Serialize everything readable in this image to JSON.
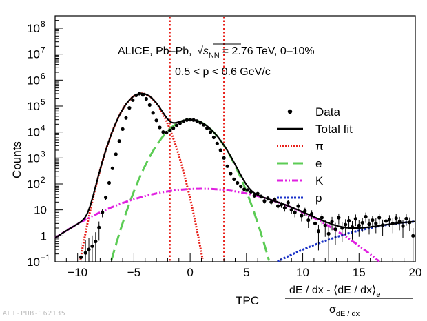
{
  "chart_data": {
    "type": "scatter",
    "collaboration_label": "ALICE, Pb–Pb,",
    "sqrt_symbol": "√",
    "energy_symbol": "s",
    "energy_subscript": "NN",
    "energy_value": "= 2.76 TeV, 0–10%",
    "momentum_range": "0.5 < p < 0.6 GeV/c",
    "ylabel": "Counts",
    "xlabel": {
      "prefix": "TPC",
      "numerator": "dE / dx - ⟨dE / dx⟩",
      "numerator_subscript": "e",
      "denominator": "σ",
      "denominator_subscript": "dE / dx"
    },
    "xlim": [
      -12,
      20
    ],
    "ylim": [
      0.1,
      300000000
    ],
    "yscale": "log",
    "x_ticks": [
      {
        "value": -10,
        "label": "−10"
      },
      {
        "value": -5,
        "label": "−5"
      },
      {
        "value": 0,
        "label": "0"
      },
      {
        "value": 5,
        "label": "5"
      },
      {
        "value": 10,
        "label": "10"
      },
      {
        "value": 15,
        "label": "15"
      },
      {
        "value": 20,
        "label": "20"
      }
    ],
    "y_ticks": [
      {
        "value": 0.1,
        "base": "10",
        "exp": "−1"
      },
      {
        "value": 1,
        "base": "1",
        "exp": ""
      },
      {
        "value": 10,
        "base": "10",
        "exp": ""
      },
      {
        "value": 100,
        "base": "10",
        "exp": "2"
      },
      {
        "value": 1000,
        "base": "10",
        "exp": "3"
      },
      {
        "value": 10000,
        "base": "10",
        "exp": "4"
      },
      {
        "value": 100000,
        "base": "10",
        "exp": "5"
      },
      {
        "value": 1000000,
        "base": "10",
        "exp": "6"
      },
      {
        "value": 10000000,
        "base": "10",
        "exp": "7"
      },
      {
        "value": 100000000,
        "base": "10",
        "exp": "8"
      }
    ],
    "selection_lines": [
      -1.8,
      3.0
    ],
    "series": [
      {
        "name": "Data",
        "legend_label": "Data",
        "kind": "points",
        "color": "#000000"
      },
      {
        "name": "Total fit",
        "legend_label": "Total fit",
        "kind": "line",
        "color": "#000000",
        "components": [
          "pi",
          "e",
          "K",
          "p"
        ]
      },
      {
        "name": "pi",
        "legend_label": "π",
        "kind": "gauss",
        "color": "#e8201a",
        "dash": "2,2",
        "amp": 300000,
        "mean": -4.5,
        "sigma": 1.0,
        "lambda": 0.18
      },
      {
        "name": "e",
        "legend_label": "e",
        "kind": "gauss",
        "color": "#5ccc55",
        "dash": "16,7",
        "amp": 30000,
        "mean": 0.0,
        "sigma": 1.4,
        "lambda": 0
      },
      {
        "name": "K",
        "legend_label": "K",
        "kind": "gauss",
        "color": "#e020e0",
        "dash": "9,3,2,3,2,3",
        "amp": 65,
        "mean": 1.0,
        "sigma": 4.4,
        "lambda": 0
      },
      {
        "name": "p",
        "legend_label": "p",
        "kind": "gauss",
        "color": "#1a32c8",
        "dash": "3,2",
        "amp": 3.8,
        "mean": 22.0,
        "sigma": 5.3,
        "lambda": 0
      }
    ],
    "data_points": [
      {
        "x": -9.7,
        "y": 0.15
      },
      {
        "x": -9.3,
        "y": 0.22
      },
      {
        "x": -9.0,
        "y": 0.3
      },
      {
        "x": -8.7,
        "y": 0.4
      },
      {
        "x": -8.4,
        "y": 0.6
      },
      {
        "x": -8.1,
        "y": 2.1
      },
      {
        "x": -7.8,
        "y": 8
      },
      {
        "x": -7.5,
        "y": 30
      },
      {
        "x": -7.2,
        "y": 110
      },
      {
        "x": -6.9,
        "y": 400
      },
      {
        "x": -6.6,
        "y": 1400
      },
      {
        "x": -6.3,
        "y": 4500
      },
      {
        "x": -6.0,
        "y": 13000
      },
      {
        "x": -5.7,
        "y": 35000
      },
      {
        "x": -5.4,
        "y": 85000
      },
      {
        "x": -5.1,
        "y": 170000
      },
      {
        "x": -4.8,
        "y": 260000
      },
      {
        "x": -4.5,
        "y": 300000
      },
      {
        "x": -4.2,
        "y": 270000
      },
      {
        "x": -3.9,
        "y": 190000
      },
      {
        "x": -3.6,
        "y": 110000
      },
      {
        "x": -3.3,
        "y": 55000
      },
      {
        "x": -3.0,
        "y": 28000
      },
      {
        "x": -2.7,
        "y": 15000
      },
      {
        "x": -2.4,
        "y": 10000
      },
      {
        "x": -2.1,
        "y": 9500
      },
      {
        "x": -1.8,
        "y": 11500
      },
      {
        "x": -1.5,
        "y": 14000
      },
      {
        "x": -1.2,
        "y": 18000
      },
      {
        "x": -0.9,
        "y": 22000
      },
      {
        "x": -0.6,
        "y": 26000
      },
      {
        "x": -0.3,
        "y": 29000
      },
      {
        "x": 0.0,
        "y": 30000
      },
      {
        "x": 0.3,
        "y": 29000
      },
      {
        "x": 0.6,
        "y": 26500
      },
      {
        "x": 0.9,
        "y": 23000
      },
      {
        "x": 1.2,
        "y": 19000
      },
      {
        "x": 1.5,
        "y": 14000
      },
      {
        "x": 1.8,
        "y": 9800
      },
      {
        "x": 2.1,
        "y": 6200
      },
      {
        "x": 2.4,
        "y": 3600
      },
      {
        "x": 2.7,
        "y": 2000
      },
      {
        "x": 3.0,
        "y": 1000
      },
      {
        "x": 3.3,
        "y": 480
      },
      {
        "x": 3.6,
        "y": 250
      },
      {
        "x": 3.9,
        "y": 150
      },
      {
        "x": 4.2,
        "y": 110
      },
      {
        "x": 4.5,
        "y": 80
      },
      {
        "x": 4.8,
        "y": 62
      },
      {
        "x": 5.1,
        "y": 58
      },
      {
        "x": 5.4,
        "y": 50
      },
      {
        "x": 5.7,
        "y": 35
      },
      {
        "x": 6.0,
        "y": 42
      },
      {
        "x": 6.3,
        "y": 33
      },
      {
        "x": 6.6,
        "y": 22
      },
      {
        "x": 6.9,
        "y": 28
      },
      {
        "x": 7.2,
        "y": 20
      },
      {
        "x": 7.5,
        "y": 25
      },
      {
        "x": 7.8,
        "y": 14
      },
      {
        "x": 8.1,
        "y": 16
      },
      {
        "x": 8.4,
        "y": 12
      },
      {
        "x": 8.7,
        "y": 19
      },
      {
        "x": 9.0,
        "y": 10
      },
      {
        "x": 9.3,
        "y": 8
      },
      {
        "x": 9.6,
        "y": 14
      },
      {
        "x": 9.9,
        "y": 6
      },
      {
        "x": 10.2,
        "y": 9
      },
      {
        "x": 10.5,
        "y": 4
      },
      {
        "x": 10.8,
        "y": 7
      },
      {
        "x": 11.1,
        "y": 3
      },
      {
        "x": 11.4,
        "y": 1.5
      },
      {
        "x": 11.7,
        "y": 5
      },
      {
        "x": 12.0,
        "y": 2.5
      },
      {
        "x": 12.3,
        "y": 1.2
      },
      {
        "x": 12.6,
        "y": 3.5
      },
      {
        "x": 12.9,
        "y": 1.8
      },
      {
        "x": 13.2,
        "y": 5
      },
      {
        "x": 13.5,
        "y": 2
      },
      {
        "x": 13.8,
        "y": 2.7
      },
      {
        "x": 14.1,
        "y": 3.8
      },
      {
        "x": 14.4,
        "y": 2.2
      },
      {
        "x": 14.7,
        "y": 4.5
      },
      {
        "x": 15.0,
        "y": 2.5
      },
      {
        "x": 15.3,
        "y": 3.2
      },
      {
        "x": 15.6,
        "y": 5.5
      },
      {
        "x": 15.9,
        "y": 2.8
      },
      {
        "x": 16.2,
        "y": 4
      },
      {
        "x": 16.5,
        "y": 3
      },
      {
        "x": 16.8,
        "y": 5
      },
      {
        "x": 17.1,
        "y": 2.6
      },
      {
        "x": 17.4,
        "y": 3.7
      },
      {
        "x": 17.7,
        "y": 4.2
      },
      {
        "x": 18.0,
        "y": 3
      },
      {
        "x": 18.3,
        "y": 4.8
      },
      {
        "x": 18.6,
        "y": 3.5
      },
      {
        "x": 18.9,
        "y": 2.4
      },
      {
        "x": 19.2,
        "y": 4.6
      },
      {
        "x": 19.5,
        "y": 3.3
      },
      {
        "x": 19.8,
        "y": 1
      }
    ]
  },
  "footer_label": "ALI-PUB-162135"
}
